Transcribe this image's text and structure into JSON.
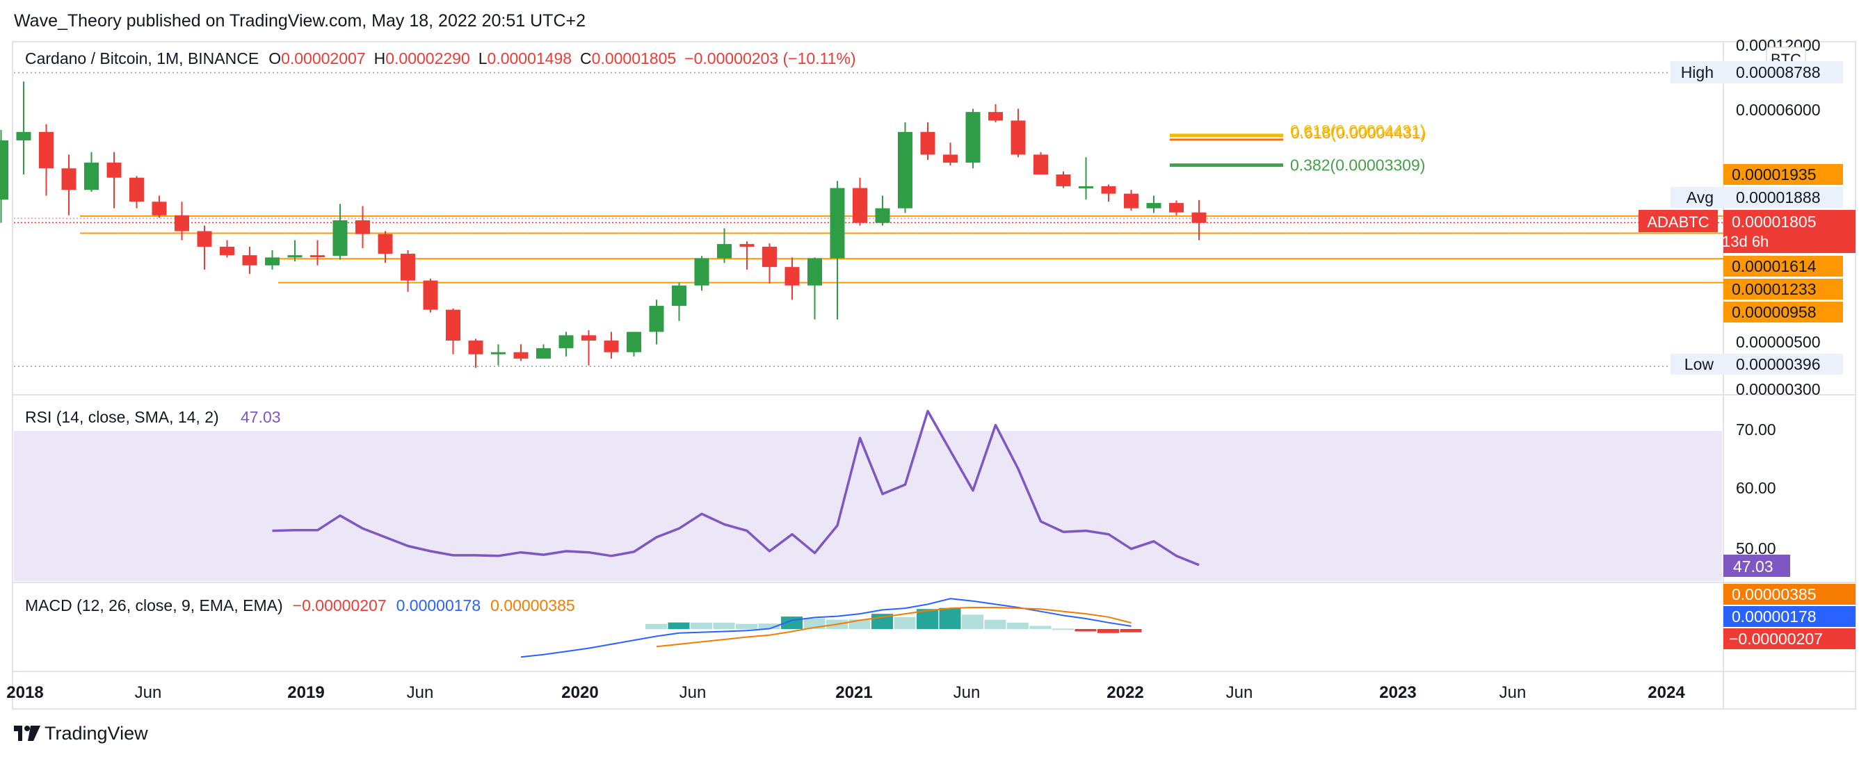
{
  "header": {
    "published": "Wave_Theory published on TradingView.com, May 18, 2022 20:51 UTC+2"
  },
  "footer": {
    "brand": "TradingView"
  },
  "colors": {
    "up": "#26a69a",
    "up_candle": "#2e9d46",
    "down": "#ef3b36",
    "rsi": "#7e57c2",
    "macd": "#2962ff",
    "signal": "#f57c00",
    "orange": "#ff9800",
    "fib618": "#f5b800",
    "fib382": "#43a047",
    "axis_text": "#131722",
    "muted": "#787b86"
  },
  "legend": {
    "symbol": "Cardano / Bitcoin, 1M, BINANCE",
    "o_label": "O",
    "o_value": "0.00002007",
    "h_label": "H",
    "h_value": "0.00002290",
    "l_label": "L",
    "l_value": "0.00001498",
    "c_label": "C",
    "c_value": "0.00001805",
    "change": "−0.00000203 (−10.11%)"
  },
  "price_axis": {
    "ticks": [
      "0.00012000",
      "0.00006000",
      "0.00000500",
      "0.00000300"
    ],
    "currency_badge": "BTC",
    "high_label": "High",
    "high_value": "0.00008788",
    "avg_label": "Avg",
    "avg_value": "0.00001888",
    "symbol_badge": "ADABTC",
    "last_value": "0.00001805",
    "countdown": "13d 6h",
    "low_label": "Low",
    "low_value": "0.00000396",
    "level_badges": [
      "0.00001935",
      "0.00001614",
      "0.00001233",
      "0.00000958"
    ]
  },
  "fib": {
    "f618_label": "0.618(0.00004431)",
    "f618b_label": "0.618(0.00004431)",
    "f382_label": "0.382(0.00003309)"
  },
  "rsi": {
    "title": "RSI (14, close, SMA, 14, 2)",
    "value": "47.03",
    "ticks": [
      "70.00",
      "60.00",
      "50.00"
    ]
  },
  "macd": {
    "title": "MACD (12, 26, close, 9, EMA, EMA)",
    "hist_value": "−0.00000207",
    "macd_value": "0.00000178",
    "signal_value": "0.00000385"
  },
  "time_axis": {
    "labels": [
      "2018",
      "Jun",
      "2019",
      "Jun",
      "2020",
      "Jun",
      "2021",
      "Jun",
      "2022",
      "Jun",
      "2023",
      "Jun",
      "2024"
    ]
  },
  "chart_data": [
    {
      "type": "candlestick",
      "title": "Cardano / Bitcoin, 1M, BINANCE",
      "ylabel": "BTC",
      "scale": "log",
      "ylim": [
        3e-06,
        0.00012
      ],
      "x": [
        "2017-12",
        "2018-01",
        "2018-02",
        "2018-03",
        "2018-04",
        "2018-05",
        "2018-06",
        "2018-07",
        "2018-08",
        "2018-09",
        "2018-10",
        "2018-11",
        "2018-12",
        "2019-01",
        "2019-02",
        "2019-03",
        "2019-04",
        "2019-05",
        "2019-06",
        "2019-07",
        "2019-08",
        "2019-09",
        "2019-10",
        "2019-11",
        "2019-12",
        "2020-01",
        "2020-02",
        "2020-03",
        "2020-04",
        "2020-05",
        "2020-06",
        "2020-07",
        "2020-08",
        "2020-09",
        "2020-10",
        "2020-11",
        "2020-12",
        "2021-01",
        "2021-02",
        "2021-03",
        "2021-04",
        "2021-05",
        "2021-06",
        "2021-07",
        "2021-08",
        "2021-09",
        "2021-10",
        "2021-11",
        "2021-12",
        "2022-01",
        "2022-02",
        "2022-03",
        "2022-04",
        "2022-05"
      ],
      "open": [
        2.3e-05,
        4.3e-05,
        4.7e-05,
        3.2e-05,
        2.55e-05,
        3.4e-05,
        2.9e-05,
        2.25e-05,
        1.95e-05,
        1.65e-05,
        1.4e-05,
        1.28e-05,
        1.15e-05,
        1.25e-05,
        1.28e-05,
        1.27e-05,
        1.85e-05,
        1.6e-05,
        1.3e-05,
        9.8e-06,
        7.2e-06,
        5.2e-06,
        4.5e-06,
        4.6e-06,
        4.3e-06,
        4.8e-06,
        5.5e-06,
        5.2e-06,
        4.6e-06,
        5.7e-06,
        7.5e-06,
        9.3e-06,
        1.24e-05,
        1.44e-05,
        1.4e-05,
        1.13e-05,
        9.3e-06,
        1.24e-05,
        2.6e-05,
        1.8e-05,
        2.1e-05,
        4.7e-05,
        3.7e-05,
        3.4e-05,
        5.8e-05,
        5.3e-05,
        3.7e-05,
        3e-05,
        2.65e-05,
        2.65e-05,
        2.45e-05,
        2.1e-05,
        2.22e-05,
        2.01e-05
      ],
      "high": [
        4.8e-05,
        8e-05,
        5.1e-05,
        3.7e-05,
        3.8e-05,
        3.8e-05,
        2.95e-05,
        2.4e-05,
        2.25e-05,
        1.75e-05,
        1.5e-05,
        1.4e-05,
        1.35e-05,
        1.5e-05,
        1.5e-05,
        2.2e-05,
        2.15e-05,
        1.65e-05,
        1.35e-05,
        1e-05,
        7.3e-06,
        5.3e-06,
        5e-06,
        5e-06,
        5e-06,
        5.7e-06,
        5.8e-06,
        5.7e-06,
        5.5e-06,
        8e-06,
        9.6e-06,
        1.27e-05,
        1.7e-05,
        1.48e-05,
        1.45e-05,
        1.25e-05,
        1.25e-05,
        2.8e-05,
        2.9e-05,
        2.4e-05,
        5.2e-05,
        5.2e-05,
        4.2e-05,
        6e-05,
        6.3e-05,
        6e-05,
        3.8e-05,
        3.1e-05,
        3.6e-05,
        2.7e-05,
        2.55e-05,
        2.4e-05,
        2.28e-05,
        2.29e-05
      ],
      "low": [
        1.8e-05,
        3e-05,
        2.4e-05,
        1.95e-05,
        2.5e-05,
        2.1e-05,
        2.1e-05,
        1.9e-05,
        1.5e-05,
        1.1e-05,
        1.25e-05,
        1.05e-05,
        1.1e-05,
        1.2e-05,
        1.15e-05,
        1.22e-05,
        1.38e-05,
        1.18e-05,
        8.7e-06,
        7e-06,
        4.5e-06,
        3.9e-06,
        4e-06,
        4.2e-06,
        4.3e-06,
        4.4e-06,
        4e-06,
        4.3e-06,
        4.4e-06,
        5e-06,
        6.4e-06,
        8.8e-06,
        1.18e-05,
        1.1e-05,
        9.5e-06,
        8e-06,
        6.5e-06,
        6.5e-06,
        1.75e-05,
        1.75e-05,
        2e-05,
        3.5e-05,
        3.3e-05,
        3.2e-05,
        5.2e-05,
        3.6e-05,
        3e-05,
        2.6e-05,
        2.3e-05,
        2.25e-05,
        2.05e-05,
        2e-05,
        1.95e-05,
        1.5e-05
      ],
      "close": [
        4.3e-05,
        4.7e-05,
        3.2e-05,
        2.55e-05,
        3.4e-05,
        2.9e-05,
        2.25e-05,
        1.95e-05,
        1.65e-05,
        1.4e-05,
        1.28e-05,
        1.15e-05,
        1.25e-05,
        1.28e-05,
        1.27e-05,
        1.85e-05,
        1.6e-05,
        1.3e-05,
        9.8e-06,
        7.2e-06,
        5.2e-06,
        4.5e-06,
        4.6e-06,
        4.3e-06,
        4.8e-06,
        5.5e-06,
        5.2e-06,
        4.6e-06,
        5.7e-06,
        7.5e-06,
        9.3e-06,
        1.24e-05,
        1.44e-05,
        1.4e-05,
        1.13e-05,
        9.3e-06,
        1.24e-05,
        2.6e-05,
        1.8e-05,
        2.1e-05,
        4.7e-05,
        3.7e-05,
        3.4e-05,
        5.8e-05,
        5.3e-05,
        3.7e-05,
        3e-05,
        2.65e-05,
        2.65e-05,
        2.45e-05,
        2.1e-05,
        2.22e-05,
        2.01e-05,
        1.8e-05
      ],
      "levels": {
        "high": 8.788e-05,
        "avg": 1.888e-05,
        "low": 3.96e-06,
        "last": 1.805e-05,
        "supports": [
          1.935e-05,
          1.614e-05,
          1.233e-05,
          9.58e-06
        ],
        "fib_0_618": 4.431e-05,
        "fib_0_382": 3.309e-05
      }
    },
    {
      "type": "line",
      "title": "RSI (14, close, SMA, 14, 2)",
      "ylim": [
        45,
        75
      ],
      "x": [
        "2018-12",
        "2019-01",
        "2019-02",
        "2019-03",
        "2019-04",
        "2019-05",
        "2019-06",
        "2019-07",
        "2019-08",
        "2019-09",
        "2019-10",
        "2019-11",
        "2019-12",
        "2020-01",
        "2020-02",
        "2020-03",
        "2020-04",
        "2020-05",
        "2020-06",
        "2020-07",
        "2020-08",
        "2020-09",
        "2020-10",
        "2020-11",
        "2020-12",
        "2021-01",
        "2021-02",
        "2021-03",
        "2021-04",
        "2021-05",
        "2021-06",
        "2021-07",
        "2021-08",
        "2021-09",
        "2021-10",
        "2021-11",
        "2021-12",
        "2022-01",
        "2022-02",
        "2022-03",
        "2022-04",
        "2022-05"
      ],
      "values": [
        52.9,
        53.0,
        53.0,
        55.5,
        53.3,
        51.8,
        50.3,
        49.4,
        48.7,
        48.7,
        48.6,
        49.2,
        48.8,
        49.4,
        49.2,
        48.6,
        49.3,
        51.8,
        53.3,
        55.8,
        54.0,
        52.9,
        49.4,
        52.3,
        49.1,
        53.8,
        68.8,
        59.2,
        60.8,
        73.4,
        66.6,
        59.8,
        71.0,
        63.5,
        54.5,
        52.7,
        52.9,
        52.3,
        49.8,
        51.1,
        48.6,
        47.03
      ],
      "band": [
        30,
        70
      ]
    },
    {
      "type": "line",
      "title": "MACD (12, 26, close, 9, EMA, EMA)",
      "series": [
        {
          "name": "MACD",
          "values": [
            -1.75e-05,
            -1.6e-05,
            -1.4e-05,
            -1.2e-05,
            -9.5e-06,
            -7e-06,
            -4.5e-06,
            -2.5e-06,
            -2e-06,
            -1.5e-06,
            -1e-06,
            2e-07,
            5.5e-06,
            7.2e-06,
            8e-06,
            9.5e-06,
            1.2e-05,
            1.3e-05,
            1.55e-05,
            1.9e-05,
            1.75e-05,
            1.55e-05,
            1.35e-05,
            1.1e-05,
            8.5e-06,
            6.5e-06,
            4e-06,
            1.8e-06
          ]
        },
        {
          "name": "Signal",
          "values": [
            null,
            null,
            null,
            null,
            null,
            null,
            -1.1e-05,
            -9.5e-06,
            -8e-06,
            -6.5e-06,
            -5e-06,
            -3.8e-06,
            -1.5e-06,
            1e-06,
            3e-06,
            5.5e-06,
            7.5e-06,
            9.5e-06,
            1.15e-05,
            1.3e-05,
            1.35e-05,
            1.35e-05,
            1.3e-05,
            1.25e-05,
            1.1e-05,
            9.5e-06,
            7.5e-06,
            3.85e-06
          ]
        }
      ],
      "histogram": [
        0,
        0,
        0,
        0,
        0,
        0,
        3.2e-06,
        4.1e-06,
        4e-06,
        4e-06,
        3.2e-06,
        3.4e-06,
        7.8e-06,
        6.6e-06,
        5.8e-06,
        6e-06,
        9.5e-06,
        7.5e-06,
        1.25e-05,
        1.32e-05,
        9e-06,
        5.8e-06,
        4e-06,
        2e-06,
        3e-07,
        -1.5e-06,
        -2.5e-06,
        -2.07e-06
      ]
    }
  ]
}
